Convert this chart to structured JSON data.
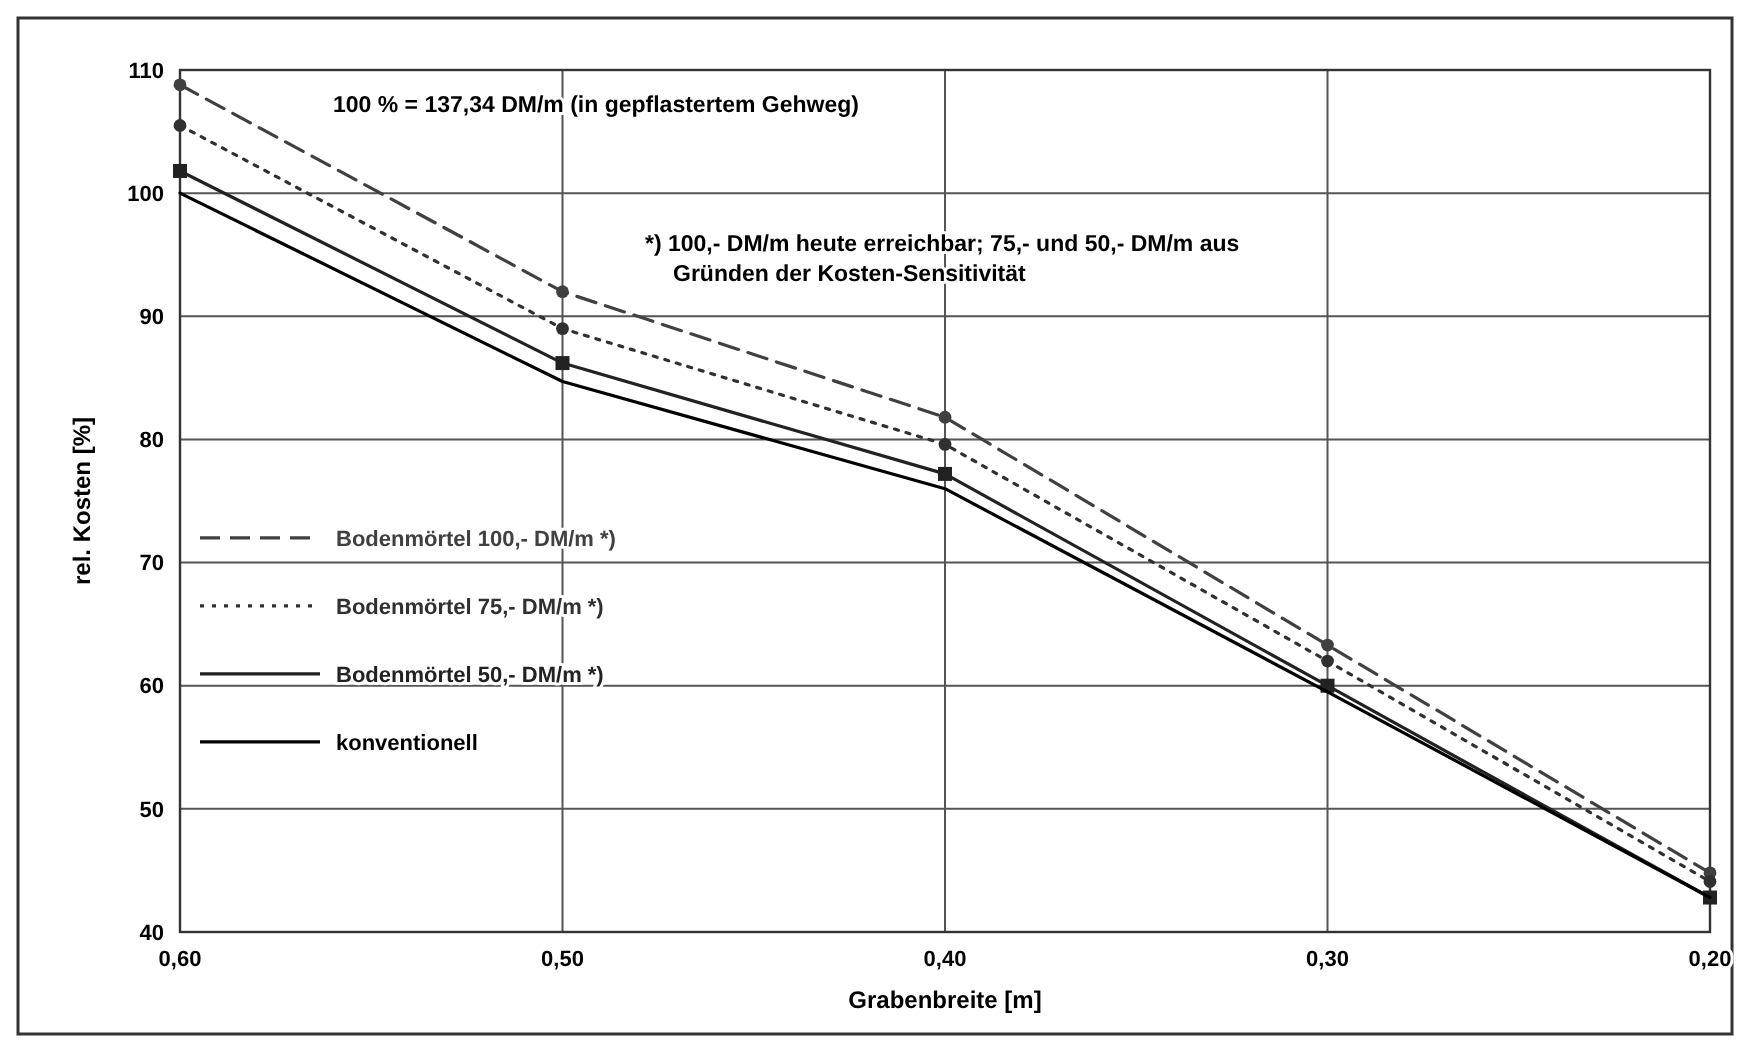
{
  "chart_data": {
    "type": "line",
    "xlabel": "Grabenbreite [m]",
    "ylabel": "rel. Kosten [%]",
    "x": [
      0.6,
      0.5,
      0.4,
      0.3,
      0.2
    ],
    "xlim": [
      0.6,
      0.2
    ],
    "xticks": [
      {
        "value": 0.6,
        "label": "0,60"
      },
      {
        "value": 0.5,
        "label": "0,50"
      },
      {
        "value": 0.4,
        "label": "0,40"
      },
      {
        "value": 0.3,
        "label": "0,30"
      },
      {
        "value": 0.2,
        "label": "0,20"
      }
    ],
    "ylim": [
      40,
      110
    ],
    "yticks": [
      40,
      50,
      60,
      70,
      80,
      90,
      100,
      110
    ],
    "grid": true,
    "legend": "left",
    "annotations": [
      "100 % = 137,34 DM/m (in gepflastertem Gehweg)",
      "*) 100,- DM/m heute erreichbar; 75,- und 50,- DM/m aus\nGründen der Kosten-Sensitivität"
    ],
    "series": [
      {
        "name": "Bodenmörtel 100,- DM/m *)",
        "color": "#404040",
        "line_style": "dashed",
        "marker": "circle",
        "values": [
          108.8,
          92,
          81.8,
          63.3,
          44.8
        ]
      },
      {
        "name": "Bodenmörtel 75,- DM/m *)",
        "color": "#303030",
        "line_style": "dotted",
        "marker": "circle",
        "values": [
          105.5,
          89,
          79.6,
          62,
          44.1
        ]
      },
      {
        "name": "Bodenmörtel 50,- DM/m *)",
        "color": "#222222",
        "line_style": "solid",
        "marker": "square",
        "values": [
          101.8,
          86.2,
          77.2,
          60,
          42.8
        ]
      },
      {
        "name": "konventionell",
        "color": "#000000",
        "line_style": "solid",
        "marker": "none",
        "values": [
          100,
          84.7,
          76,
          59.5,
          42.8
        ]
      }
    ]
  }
}
